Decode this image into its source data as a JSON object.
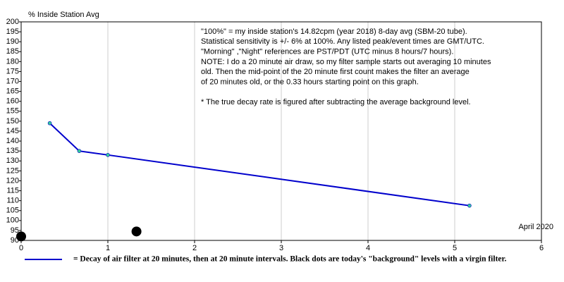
{
  "chart_data": {
    "type": "line",
    "y_axis_label": "% Inside Station Avg",
    "xlim": [
      0,
      6
    ],
    "xticks": [
      0,
      1,
      2,
      3,
      4,
      5,
      6
    ],
    "ylim": [
      90,
      200
    ],
    "yticks": [
      90,
      95,
      100,
      105,
      110,
      115,
      120,
      125,
      130,
      135,
      140,
      145,
      150,
      155,
      160,
      165,
      170,
      175,
      180,
      185,
      190,
      195,
      200
    ],
    "grid": "x",
    "series": [
      {
        "name": "= Decay of air filter at 20 minutes, then at 20 minute intervals.  Black dots are today's \"background\" levels with a virgin filter.",
        "color": "#0000cc",
        "marker_color": "#33cc99",
        "x": [
          0.33,
          0.67,
          1,
          5.17
        ],
        "values": [
          149,
          135,
          133,
          107.5
        ]
      }
    ],
    "points": {
      "color": "#000000",
      "x": [
        0,
        1.33
      ],
      "values": [
        92,
        94.5
      ]
    },
    "notes": [
      "\"100%\" = my inside station's 14.82cpm (year 2018) 8-day avg (SBM-20 tube).",
      "Statistical sensitivity is +/- 6% at 100%.  Any listed peak/event times are GMT/UTC.",
      "\"Morning\" ,\"Night\" references are PST/PDT (UTC minus 8 hours/7 hours).",
      "NOTE: I do a 20 minute air draw, so my filter sample starts out averaging 10 minutes",
      "old.  Then the mid-point of the 20 minute first count makes the filter an average",
      "of 20 minutes old, or the 0.33 hours starting point on this graph.",
      "",
      "* The true decay rate is figured after subtracting the average background level."
    ],
    "annotation": "April 2020"
  }
}
